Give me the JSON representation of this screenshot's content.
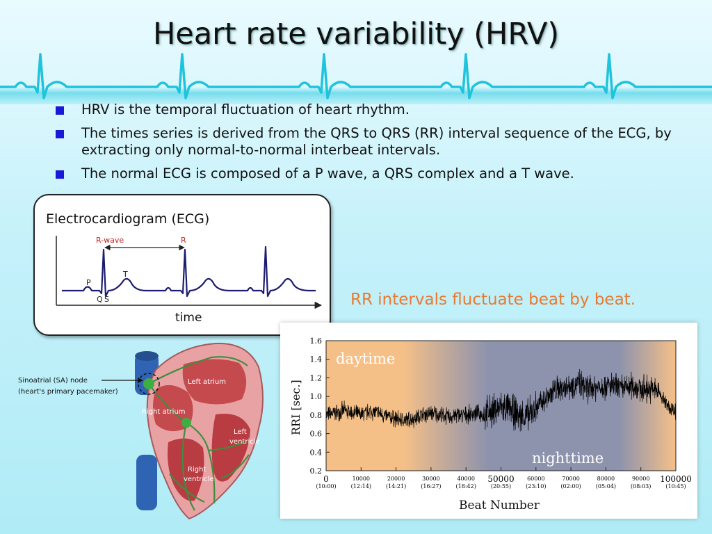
{
  "slide": {
    "title_part1": "Heart",
    "title_part2": "rate",
    "title_part3": "variability (HRV)",
    "bullets": [
      "HRV is the temporal fluctuation of heart rhythm.",
      "The times series is derived from the QRS to QRS (RR) interval sequence of the ECG, by extracting only normal-to-normal interbeat intervals.",
      "The normal ECG is composed of a P wave, a QRS complex and a T wave."
    ],
    "accent_color": "#1818d8",
    "caption": "RR intervals fluctuate beat by beat.",
    "caption_color": "#e87a30"
  },
  "ecg_panel": {
    "title": "Electrocardiogram (ECG)",
    "labels": {
      "r_wave": "R-wave",
      "r": "R",
      "p": "P",
      "t": "T",
      "q": "Q",
      "s": "S",
      "x_axis": "time"
    }
  },
  "heart_diagram": {
    "labels": {
      "sa_node_line1": "Sinoatrial (SA) node",
      "sa_node_line2": "(heart's primary pacemaker)",
      "left_atrium": "Left atrium",
      "right_atrium": "Right atrium",
      "left_ventricle_line1": "Left",
      "left_ventricle_line2": "ventricle",
      "right_ventricle_line1": "Right",
      "right_ventricle_line2": "ventricle"
    }
  },
  "chart_data": {
    "type": "line",
    "xlabel": "Beat Number",
    "ylabel": "RRI [sec.]",
    "xlim": [
      0,
      100000
    ],
    "ylim": [
      0.2,
      1.6
    ],
    "yticks": [
      0.2,
      0.4,
      0.6,
      0.8,
      1.0,
      1.2,
      1.4,
      1.6
    ],
    "xticks": [
      {
        "value": 0,
        "label": "0",
        "time": "(10:00)"
      },
      {
        "value": 10000,
        "label": "10000",
        "time": "(12:14)"
      },
      {
        "value": 20000,
        "label": "20000",
        "time": "(14:21)"
      },
      {
        "value": 30000,
        "label": "30000",
        "time": "(16:27)"
      },
      {
        "value": 40000,
        "label": "40000",
        "time": "(18:42)"
      },
      {
        "value": 50000,
        "label": "50000",
        "time": "(20:55)"
      },
      {
        "value": 60000,
        "label": "60000",
        "time": "(23:10)"
      },
      {
        "value": 70000,
        "label": "70000",
        "time": "(02:00)"
      },
      {
        "value": 80000,
        "label": "80000",
        "time": "(05:04)"
      },
      {
        "value": 90000,
        "label": "90000",
        "time": "(08:03)"
      },
      {
        "value": 100000,
        "label": "100000",
        "time": "(10:45)"
      }
    ],
    "annotations": {
      "day": "daytime",
      "night": "nighttime"
    },
    "colors": {
      "day": "#f5c088",
      "night": "#8e93ad",
      "line": "#000000"
    },
    "series": [
      {
        "x": [
          0,
          2500,
          5000,
          7500,
          10000,
          12500,
          15000,
          17500,
          20000,
          22500,
          25000,
          27500,
          30000,
          32500,
          35000,
          37500,
          40000,
          42500,
          45000,
          47500,
          50000,
          52500,
          55000,
          57500,
          60000,
          62500,
          65000,
          67500,
          70000,
          72500,
          75000,
          77500,
          80000,
          82500,
          85000,
          87500,
          90000,
          92500,
          95000,
          97500,
          100000
        ],
        "y": [
          0.8,
          0.82,
          0.85,
          0.82,
          0.8,
          0.84,
          0.82,
          0.78,
          0.76,
          0.74,
          0.76,
          0.8,
          0.82,
          0.8,
          0.78,
          0.8,
          0.8,
          0.82,
          0.8,
          0.84,
          0.88,
          0.86,
          0.8,
          0.78,
          0.88,
          0.96,
          1.06,
          1.1,
          1.12,
          1.14,
          1.08,
          1.1,
          1.12,
          1.1,
          1.08,
          1.12,
          1.08,
          1.08,
          1.06,
          0.9,
          0.84
        ]
      }
    ]
  }
}
